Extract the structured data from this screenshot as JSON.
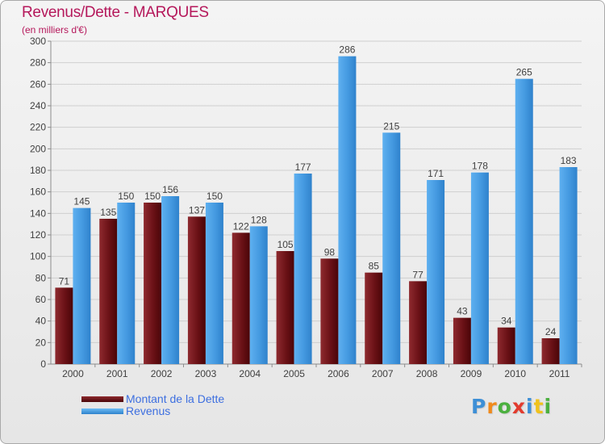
{
  "header": {
    "title": "Revenus/Dette - MARQUES",
    "subtitle": "(en milliers d'€)"
  },
  "colors": {
    "title": "#b5185b",
    "grid": "#c8c8c8",
    "debt_bar": "#7a1a1f",
    "revenue_bar": "#4d9de0",
    "legend_text": "#3d6fe0"
  },
  "legend": {
    "items": [
      {
        "label": "Montant de la Dette",
        "color": "#6e0f12"
      },
      {
        "label": "Revenus",
        "color": "#3d95e3"
      }
    ]
  },
  "logo": {
    "letters": [
      {
        "ch": "P",
        "color": "#3d8fd6"
      },
      {
        "ch": "r",
        "color": "#f08a1c"
      },
      {
        "ch": "o",
        "color": "#4bb03f"
      },
      {
        "ch": "x",
        "color": "#e23b2e"
      },
      {
        "ch": "i",
        "color": "#3d8fd6"
      },
      {
        "ch": "t",
        "color": "#f0c21c"
      },
      {
        "ch": "i",
        "color": "#4bb03f"
      }
    ]
  },
  "chart_data": {
    "type": "bar",
    "title": "Revenus/Dette - MARQUES",
    "subtitle": "(en milliers d'€)",
    "xlabel": "",
    "ylabel": "",
    "ylim": [
      0,
      300
    ],
    "yticks": [
      0,
      20,
      40,
      60,
      80,
      100,
      120,
      140,
      160,
      180,
      200,
      220,
      240,
      260,
      280,
      300
    ],
    "grid": true,
    "legend_position": "bottom-left",
    "categories": [
      "2000",
      "2001",
      "2002",
      "2003",
      "2004",
      "2005",
      "2006",
      "2007",
      "2008",
      "2009",
      "2010",
      "2011"
    ],
    "series": [
      {
        "name": "Montant de la Dette",
        "values": [
          71,
          135,
          150,
          137,
          122,
          105,
          98,
          85,
          77,
          43,
          34,
          24
        ]
      },
      {
        "name": "Revenus",
        "values": [
          145,
          150,
          156,
          150,
          128,
          177,
          286,
          215,
          171,
          178,
          265,
          183
        ]
      }
    ]
  }
}
